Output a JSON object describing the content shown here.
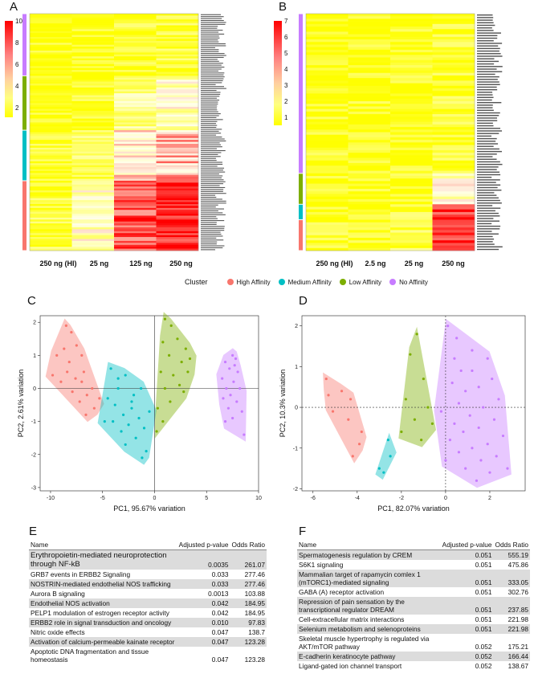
{
  "panels": {
    "a": "A",
    "b": "B",
    "c": "C",
    "d": "D",
    "e": "E",
    "f": "F"
  },
  "heatA": {
    "xlabels": [
      "250 ng (HI)",
      "25 ng",
      "125 ng",
      "250 ng"
    ],
    "colorbar_ticks": [
      "10",
      "8",
      "6",
      "4",
      "2"
    ],
    "clusters": [
      {
        "name": "No Affinity",
        "color": "#c77cff",
        "rows": 32
      },
      {
        "name": "Low Affinity",
        "color": "#7cae00",
        "rows": 28
      },
      {
        "name": "Medium Affinity",
        "color": "#00bfc4",
        "rows": 26
      },
      {
        "name": "High Affinity",
        "color": "#f8766d",
        "rows": 36
      }
    ]
  },
  "heatB": {
    "xlabels": [
      "250 ng (HI)",
      "2.5 ng",
      "25 ng",
      "250 ng"
    ],
    "colorbar_ticks": [
      "7",
      "6",
      "5",
      "4",
      "3",
      "2",
      "1"
    ],
    "clusters": [
      {
        "name": "No Affinity",
        "color": "#c77cff",
        "rows": 62
      },
      {
        "name": "Low Affinity",
        "color": "#7cae00",
        "rows": 12
      },
      {
        "name": "Medium Affinity",
        "color": "#00bfc4",
        "rows": 6
      },
      {
        "name": "High Affinity",
        "color": "#f8766d",
        "rows": 12
      }
    ]
  },
  "legend": {
    "title": "Cluster",
    "items": [
      {
        "label": "High Affinity",
        "color": "#f8766d"
      },
      {
        "label": "Medium Affinity",
        "color": "#00bfc4"
      },
      {
        "label": "Low Affinity",
        "color": "#7cae00"
      },
      {
        "label": "No Affinity",
        "color": "#c77cff"
      }
    ]
  },
  "chart_data": [
    {
      "type": "scatter",
      "title": "C",
      "xlabel": "PC1, 95.67% variation",
      "ylabel": "PC2, 2.61% variation",
      "xlim": [
        -11,
        10
      ],
      "ylim": [
        -3.1,
        2.2
      ],
      "xticks": [
        -10,
        -5,
        0,
        5,
        10
      ],
      "yticks": [
        -3,
        -2,
        -1,
        0,
        1,
        2
      ],
      "series": [
        {
          "name": "High Affinity",
          "color": "#f8766d",
          "points": [
            [
              -8.5,
              1.9
            ],
            [
              -8,
              1.7
            ],
            [
              -9.4,
              1
            ],
            [
              -8.7,
              1.2
            ],
            [
              -7.5,
              1.3
            ],
            [
              -8.2,
              0.8
            ],
            [
              -7,
              1.0
            ],
            [
              -9.8,
              0.4
            ],
            [
              -9,
              0.2
            ],
            [
              -8.4,
              0.5
            ],
            [
              -7.6,
              0.3
            ],
            [
              -6.8,
              0.5
            ],
            [
              -7.9,
              -0.1
            ],
            [
              -6.5,
              -0.2
            ],
            [
              -7.2,
              -0.4
            ],
            [
              -6,
              0
            ],
            [
              -5.8,
              -0.6
            ],
            [
              -6.6,
              -0.8
            ],
            [
              -5.3,
              -0.3
            ],
            [
              -7,
              0.2
            ]
          ]
        },
        {
          "name": "Medium Affinity",
          "color": "#00bfc4",
          "points": [
            [
              -4.2,
              0.6
            ],
            [
              -3.5,
              0.3
            ],
            [
              -2.8,
              0.4
            ],
            [
              -4.5,
              -0.3
            ],
            [
              -3.8,
              -0.5
            ],
            [
              -3,
              -0.8
            ],
            [
              -2.2,
              -0.4
            ],
            [
              -1.5,
              -0.9
            ],
            [
              -4,
              -1.0
            ],
            [
              -3.2,
              -1.3
            ],
            [
              -2.5,
              -1.1
            ],
            [
              -1.8,
              -1.5
            ],
            [
              -1,
              -1.2
            ],
            [
              -0.5,
              -0.7
            ],
            [
              -2,
              -0.2
            ],
            [
              -1.3,
              0
            ],
            [
              -0.8,
              -1.9
            ],
            [
              -2.8,
              -1.7
            ],
            [
              -4.8,
              -1.0
            ],
            [
              -1.2,
              -2.1
            ],
            [
              -3.5,
              0.0
            ],
            [
              -2.2,
              -0.6
            ]
          ]
        },
        {
          "name": "Low Affinity",
          "color": "#7cae00",
          "points": [
            [
              1,
              2.1
            ],
            [
              1.6,
              1.9
            ],
            [
              0.8,
              1.4
            ],
            [
              2.2,
              1.5
            ],
            [
              3,
              1.2
            ],
            [
              1.4,
              1.0
            ],
            [
              2.6,
              0.8
            ],
            [
              0.6,
              0.5
            ],
            [
              1.8,
              0.4
            ],
            [
              3.2,
              0.5
            ],
            [
              2.4,
              0.1
            ],
            [
              1,
              0.0
            ],
            [
              1.5,
              -0.4
            ],
            [
              0.3,
              -0.6
            ],
            [
              0.8,
              -1.0
            ],
            [
              0.2,
              -1.3
            ],
            [
              2.8,
              -0.1
            ],
            [
              3.4,
              0.9
            ]
          ]
        },
        {
          "name": "No Affinity",
          "color": "#c77cff",
          "points": [
            [
              7.5,
              1.0
            ],
            [
              7.8,
              0.9
            ],
            [
              6.8,
              0.8
            ],
            [
              7.2,
              0.6
            ],
            [
              8,
              0.5
            ],
            [
              6.5,
              0.3
            ],
            [
              7.6,
              0.2
            ],
            [
              6.9,
              0.0
            ],
            [
              8.2,
              0.0
            ],
            [
              7.3,
              -0.2
            ],
            [
              6.6,
              -0.3
            ],
            [
              7.9,
              -0.4
            ],
            [
              7.1,
              -0.6
            ],
            [
              8.4,
              -0.7
            ],
            [
              7.5,
              -0.9
            ],
            [
              6.8,
              -1.0
            ],
            [
              8.6,
              -1.4
            ],
            [
              7.7,
              0.7
            ]
          ]
        }
      ]
    },
    {
      "type": "scatter",
      "title": "D",
      "xlabel": "PC1, 82.07% variation",
      "ylabel": "PC2, 10.3% variation",
      "xlim": [
        -6.5,
        3.6
      ],
      "ylim": [
        -2.05,
        2.25
      ],
      "xticks": [
        -6,
        -4,
        -2,
        0,
        2
      ],
      "yticks": [
        -2,
        -1,
        0,
        1,
        2
      ],
      "series": [
        {
          "name": "High Affinity",
          "color": "#f8766d",
          "points": [
            [
              -5.4,
              0.7
            ],
            [
              -4.7,
              0.4
            ],
            [
              -4.3,
              0.2
            ],
            [
              -5.1,
              -0.1
            ],
            [
              -4.4,
              -0.3
            ],
            [
              -3.8,
              -0.6
            ],
            [
              -3.9,
              -0.9
            ],
            [
              -4.2,
              -1.2
            ],
            [
              -5.3,
              0.3
            ]
          ]
        },
        {
          "name": "Medium Affinity",
          "color": "#00bfc4",
          "points": [
            [
              -2.6,
              -0.8
            ],
            [
              -3,
              -1.5
            ],
            [
              -2.8,
              -1.6
            ],
            [
              -2.5,
              -1.2
            ]
          ]
        },
        {
          "name": "Low Affinity",
          "color": "#7cae00",
          "points": [
            [
              -1.3,
              1.8
            ],
            [
              -1.6,
              1.3
            ],
            [
              -1,
              0.7
            ],
            [
              -1.8,
              0.2
            ],
            [
              -0.8,
              0.0
            ],
            [
              -1.4,
              -0.3
            ],
            [
              -0.6,
              -0.4
            ],
            [
              -2.0,
              -0.6
            ],
            [
              -1.1,
              -0.8
            ]
          ]
        },
        {
          "name": "No Affinity",
          "color": "#c77cff",
          "points": [
            [
              0.1,
              2.0
            ],
            [
              0.5,
              1.7
            ],
            [
              1.2,
              1.4
            ],
            [
              0.4,
              1.2
            ],
            [
              1.9,
              1.2
            ],
            [
              1.2,
              0.9
            ],
            [
              0.7,
              0.9
            ],
            [
              2.1,
              0.7
            ],
            [
              0.3,
              0.6
            ],
            [
              1.5,
              0.5
            ],
            [
              0.9,
              0.4
            ],
            [
              2.4,
              0.2
            ],
            [
              0.6,
              0.1
            ],
            [
              1.7,
              0.0
            ],
            [
              -0.2,
              -0.1
            ],
            [
              1.1,
              -0.2
            ],
            [
              2.2,
              -0.3
            ],
            [
              0.4,
              -0.4
            ],
            [
              1.5,
              -0.5
            ],
            [
              0.8,
              -0.6
            ],
            [
              2.6,
              -0.7
            ],
            [
              0.2,
              -0.8
            ],
            [
              1.9,
              -0.9
            ],
            [
              1.2,
              -1.0
            ],
            [
              0.6,
              -1.1
            ],
            [
              2.3,
              -1.2
            ],
            [
              1.6,
              -1.3
            ],
            [
              0.9,
              -1.5
            ],
            [
              2.0,
              -1.6
            ],
            [
              1.4,
              -1.8
            ],
            [
              2.8,
              -1.5
            ],
            [
              0.0,
              -1.3
            ]
          ]
        }
      ]
    }
  ],
  "tableE": {
    "headers": [
      "Name",
      "Adjusted p-value",
      "Odds Ratio"
    ],
    "rows": [
      {
        "name": "Erythropoietin-mediated neuroprotection through NF-kB",
        "p": "0.0035",
        "or": "261.07"
      },
      {
        "name": "GRB7 events in ERBB2 Signaling",
        "p": "0.033",
        "or": "277.46"
      },
      {
        "name": "NOSTRIN-mediated endothelial NOS trafficking",
        "p": "0.033",
        "or": "277.46"
      },
      {
        "name": "Aurora B signaling",
        "p": "0.0013",
        "or": "103.88"
      },
      {
        "name": "Endothelial NOS activation",
        "p": "0.042",
        "or": "184.95"
      },
      {
        "name": "PELP1 modulation of estrogen receptor activity",
        "p": "0.042",
        "or": "184.95"
      },
      {
        "name": "ERBB2 role in signal transduction and oncology",
        "p": "0.010",
        "or": "97.83"
      },
      {
        "name": "Nitric oxide effects",
        "p": "0.047",
        "or": "138.7"
      },
      {
        "name": "Activation of calcium-permeable kainate receptor",
        "p": "0.047",
        "or": "123.28"
      },
      {
        "name": "Apoptotic DNA fragmentation and tissue homeostasis",
        "p": "0.047",
        "or": "123.28"
      }
    ]
  },
  "tableF": {
    "headers": [
      "Name",
      "Adjusted p-value",
      "Odds Ratio"
    ],
    "rows": [
      {
        "name": "Spermatogenesis regulation by CREM",
        "p": "0.051",
        "or": "555.19"
      },
      {
        "name": "S6K1 signaling",
        "p": "0.051",
        "or": "475.86"
      },
      {
        "name": "Mammalian target of rapamycin comlex 1 (mTORC1)-mediated signaling",
        "p": "0.051",
        "or": "333.05"
      },
      {
        "name": "GABA (A) receptor activation",
        "p": "0.051",
        "or": "302.76"
      },
      {
        "name": "Repression of pain sensation by the transcriptional regulator DREAM",
        "p": "0.051",
        "or": "237.85"
      },
      {
        "name": "Cell-extracellular matrix interactions",
        "p": "0.051",
        "or": "221.98"
      },
      {
        "name": "Selenium metabolism and selenoproteins",
        "p": "0.051",
        "or": "221.98"
      },
      {
        "name": "Skeletal muscle hypertrophy is regulated via AKT/mTOR pathway",
        "p": "0.052",
        "or": "175.21"
      },
      {
        "name": "E-cadherin keratinocyte pathway",
        "p": "0.052",
        "or": "166.44"
      },
      {
        "name": "Ligand-gated ion channel transport",
        "p": "0.052",
        "or": "138.67"
      }
    ]
  }
}
